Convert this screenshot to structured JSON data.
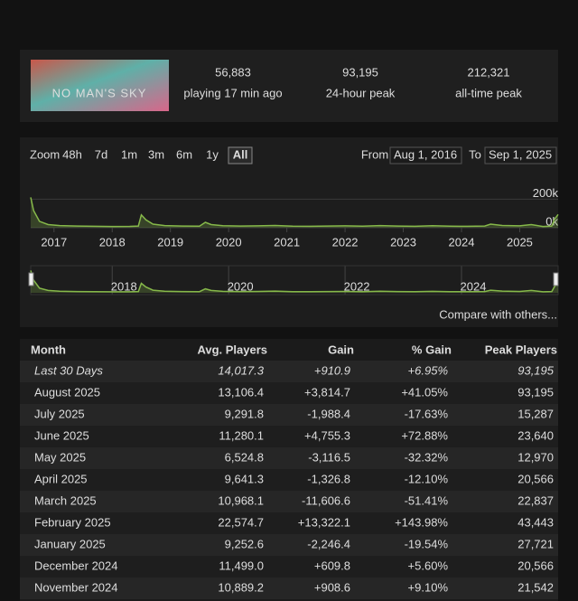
{
  "header": {
    "logo_text": "NO MAN'S SKY",
    "stats": [
      {
        "value": "56,883",
        "label": "playing 17 min ago"
      },
      {
        "value": "93,195",
        "label": "24-hour peak"
      },
      {
        "value": "212,321",
        "label": "all-time peak"
      }
    ]
  },
  "zoom": {
    "label": "Zoom",
    "options": [
      "48h",
      "7d",
      "1m",
      "3m",
      "6m",
      "1y",
      "All"
    ],
    "selected": "All"
  },
  "range": {
    "from_label": "From",
    "from": "Aug 1, 2016",
    "to_label": "To",
    "to": "Sep 1, 2025"
  },
  "chart_data": {
    "type": "line",
    "color": "#86b84a",
    "x": [
      2016.6,
      2016.65,
      2016.75,
      2016.9,
      2017.1,
      2017.4,
      2017.7,
      2018.0,
      2018.3,
      2018.45,
      2018.5,
      2018.58,
      2018.7,
      2018.9,
      2019.2,
      2019.5,
      2019.6,
      2019.7,
      2019.9,
      2020.2,
      2020.5,
      2020.8,
      2021.1,
      2021.4,
      2021.7,
      2022.0,
      2022.3,
      2022.6,
      2022.9,
      2023.2,
      2023.5,
      2023.8,
      2024.1,
      2024.4,
      2024.5,
      2024.7,
      2025.0,
      2025.2,
      2025.4,
      2025.55,
      2025.6,
      2025.66
    ],
    "values": [
      212000,
      120000,
      45000,
      22000,
      15000,
      12000,
      10000,
      9000,
      9500,
      12000,
      90000,
      55000,
      25000,
      15000,
      12000,
      11000,
      38000,
      22000,
      14000,
      12000,
      13000,
      16000,
      11000,
      10000,
      12000,
      13000,
      11000,
      15000,
      12000,
      10000,
      14000,
      11000,
      10000,
      12000,
      25000,
      16000,
      13000,
      22000,
      9000,
      12000,
      60000,
      93000
    ],
    "xlim": [
      2016.6,
      2025.66
    ],
    "xticks": [
      2017,
      2018,
      2019,
      2020,
      2021,
      2022,
      2023,
      2024,
      2025
    ],
    "ylim": [
      0,
      240000
    ],
    "yticks": [
      {
        "value": 0,
        "label": "0k"
      },
      {
        "value": 200000,
        "label": "200k"
      }
    ],
    "grid": true
  },
  "compare_link": "Compare with others...",
  "table": {
    "columns": [
      "Month",
      "Avg. Players",
      "Gain",
      "% Gain",
      "Peak Players"
    ],
    "rows": [
      [
        "Last 30 Days",
        "14,017.3",
        "+910.9",
        "+6.95%",
        "93,195"
      ],
      [
        "August 2025",
        "13,106.4",
        "+3,814.7",
        "+41.05%",
        "93,195"
      ],
      [
        "July 2025",
        "9,291.8",
        "-1,988.4",
        "-17.63%",
        "15,287"
      ],
      [
        "June 2025",
        "11,280.1",
        "+4,755.3",
        "+72.88%",
        "23,640"
      ],
      [
        "May 2025",
        "6,524.8",
        "-3,116.5",
        "-32.32%",
        "12,970"
      ],
      [
        "April 2025",
        "9,641.3",
        "-1,326.8",
        "-12.10%",
        "20,566"
      ],
      [
        "March 2025",
        "10,968.1",
        "-11,606.6",
        "-51.41%",
        "22,837"
      ],
      [
        "February 2025",
        "22,574.7",
        "+13,322.1",
        "+143.98%",
        "43,443"
      ],
      [
        "January 2025",
        "9,252.6",
        "-2,246.4",
        "-19.54%",
        "27,721"
      ],
      [
        "December 2024",
        "11,499.0",
        "+609.8",
        "+5.60%",
        "20,566"
      ],
      [
        "November 2024",
        "10,889.2",
        "+908.6",
        "+9.10%",
        "21,542"
      ]
    ]
  }
}
